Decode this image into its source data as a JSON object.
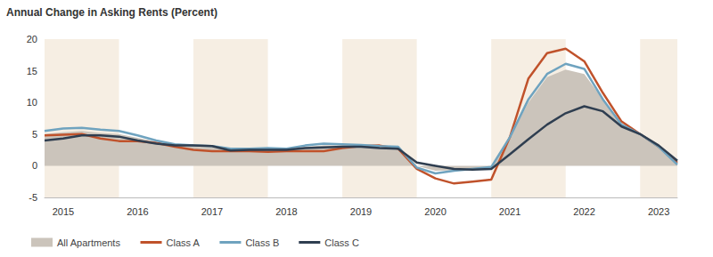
{
  "chart_data": {
    "type": "line",
    "title": "Annual Change in Asking Rents (Percent)",
    "categories": [
      null,
      "2015",
      null,
      null,
      null,
      "2016",
      null,
      null,
      null,
      "2017",
      null,
      null,
      null,
      "2018",
      null,
      null,
      null,
      "2019",
      null,
      null,
      null,
      "2020",
      null,
      null,
      null,
      "2021",
      null,
      null,
      null,
      "2022",
      null,
      null,
      null,
      "2023",
      null
    ],
    "series": [
      {
        "name": "All Apartments",
        "type": "area",
        "color": "#cbc4bb",
        "marker": "none",
        "line_style": "solid",
        "values": [
          5.0,
          5.3,
          5.5,
          5.2,
          5.0,
          4.4,
          3.8,
          3.3,
          3.0,
          2.9,
          2.6,
          2.6,
          2.6,
          2.6,
          3.0,
          3.2,
          3.2,
          3.2,
          3.0,
          2.9,
          0.0,
          -0.8,
          -0.7,
          -0.5,
          -0.3,
          4.5,
          10.0,
          14.0,
          15.2,
          14.5,
          10.5,
          6.5,
          5.0,
          3.0,
          0.3
        ]
      },
      {
        "name": "Class A",
        "type": "line",
        "color": "#c0522b",
        "marker": "none",
        "line_style": "solid",
        "values": [
          4.8,
          4.9,
          5.0,
          4.3,
          3.9,
          3.9,
          3.6,
          3.0,
          2.5,
          2.3,
          2.3,
          2.3,
          2.2,
          2.3,
          2.3,
          2.3,
          2.8,
          3.1,
          3.2,
          2.7,
          -0.5,
          -2.0,
          -2.8,
          -2.5,
          -2.2,
          4.5,
          13.8,
          17.8,
          18.5,
          16.5,
          11.5,
          7.0,
          5.0,
          3.0,
          0.5
        ]
      },
      {
        "name": "Class B",
        "type": "line",
        "color": "#6fa3bf",
        "marker": "none",
        "line_style": "solid",
        "values": [
          5.5,
          5.9,
          6.0,
          5.7,
          5.5,
          4.8,
          4.0,
          3.4,
          3.2,
          3.1,
          2.7,
          2.7,
          2.8,
          2.7,
          3.2,
          3.5,
          3.4,
          3.3,
          3.1,
          3.0,
          -0.3,
          -1.2,
          -0.8,
          -0.5,
          -0.2,
          4.5,
          10.5,
          14.5,
          16.1,
          15.3,
          10.5,
          6.5,
          5.0,
          3.0,
          0.2
        ]
      },
      {
        "name": "Class C",
        "type": "line",
        "color": "#2f3e50",
        "marker": "none",
        "line_style": "solid",
        "values": [
          4.0,
          4.3,
          4.8,
          4.8,
          4.6,
          4.0,
          3.5,
          3.2,
          3.2,
          3.1,
          2.4,
          2.5,
          2.5,
          2.5,
          2.8,
          2.9,
          3.0,
          3.0,
          2.8,
          2.7,
          0.5,
          0.0,
          -0.5,
          -0.6,
          -0.5,
          1.8,
          4.2,
          6.5,
          8.3,
          9.4,
          8.6,
          6.2,
          5.0,
          3.2,
          0.8
        ]
      }
    ],
    "ylim": [
      -5,
      20
    ],
    "yticks": [
      -5,
      0,
      5,
      10,
      15,
      20
    ],
    "grid": false,
    "legend": "bottom-left"
  }
}
